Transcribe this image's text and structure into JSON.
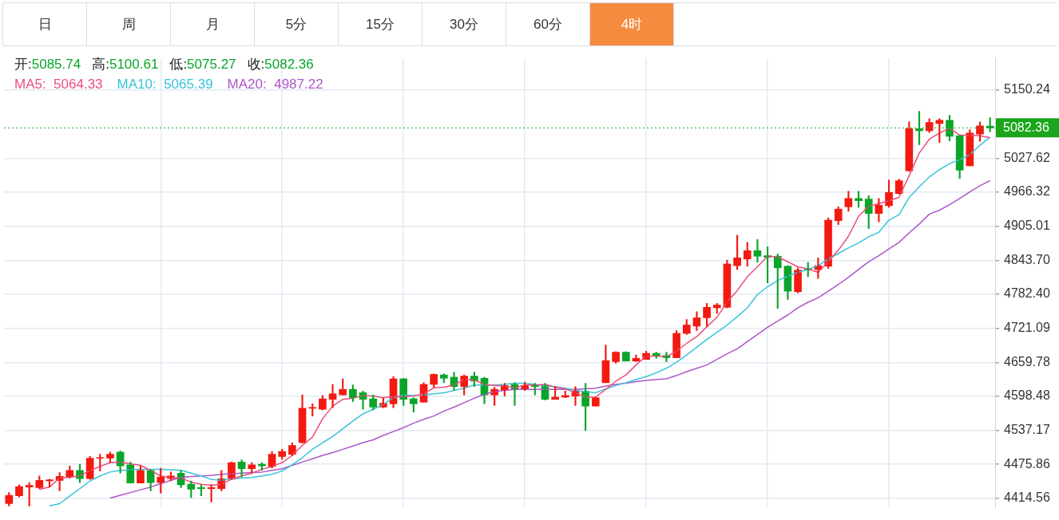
{
  "chart_data": {
    "type": "candlestick",
    "subtitle": "开:5085.74 高:5100.61 低:5075.27 收:5082.36",
    "annotations": [
      "日",
      "周",
      "月",
      "5分",
      "15分",
      "30分",
      "60分",
      "4时"
    ],
    "categories": [
      null,
      null,
      null,
      null,
      null,
      null,
      null,
      null,
      null,
      null,
      null,
      null,
      null,
      null,
      null,
      null,
      null,
      null,
      null,
      null,
      null,
      null,
      null,
      null,
      null,
      null,
      null,
      null,
      null,
      null,
      null,
      null,
      null,
      null,
      null,
      null,
      null,
      null,
      null,
      null,
      null,
      null,
      null,
      null,
      null,
      null,
      null,
      null,
      null,
      null,
      null,
      null,
      null,
      null,
      null,
      null,
      null,
      null,
      null,
      null,
      null,
      null,
      null,
      null,
      null,
      null,
      null,
      null,
      null,
      null,
      null,
      null,
      null,
      null,
      null,
      null,
      null,
      null,
      null,
      null,
      null,
      null,
      null,
      null,
      null,
      null,
      null,
      null,
      null,
      null,
      null,
      null,
      null,
      null,
      null,
      null,
      null,
      null
    ],
    "ohlc": [
      [
        4405,
        4425,
        4401,
        4420
      ],
      [
        4419,
        4439,
        4417,
        4436
      ],
      [
        4435,
        4443,
        4401,
        4438
      ],
      [
        4434,
        4455,
        4432,
        4447
      ],
      [
        4446,
        4449,
        4435,
        4448
      ],
      [
        4447,
        4461,
        4428,
        4454
      ],
      [
        4453,
        4473,
        4451,
        4465
      ],
      [
        4465,
        4476,
        4443,
        4450
      ],
      [
        4450,
        4490,
        4449,
        4487
      ],
      [
        4487,
        4494,
        4464,
        4488
      ],
      [
        4487,
        4498,
        4479,
        4494
      ],
      [
        4498,
        4500,
        4460,
        4473
      ],
      [
        4475,
        4480,
        4442,
        4442
      ],
      [
        4442,
        4473,
        4442,
        4465
      ],
      [
        4465,
        4466,
        4428,
        4443
      ],
      [
        4443,
        4469,
        4424,
        4453
      ],
      [
        4450,
        4462,
        4446,
        4455
      ],
      [
        4460,
        4465,
        4434,
        4439
      ],
      [
        4440,
        4446,
        4416,
        4431
      ],
      [
        4434,
        4439,
        4419,
        4432
      ],
      [
        4432,
        4439,
        4408,
        4434
      ],
      [
        4432,
        4465,
        4428,
        4450
      ],
      [
        4449,
        4480,
        4449,
        4479
      ],
      [
        4480,
        4484,
        4453,
        4468
      ],
      [
        4468,
        4479,
        4460,
        4475
      ],
      [
        4476,
        4479,
        4465,
        4473
      ],
      [
        4472,
        4499,
        4469,
        4494
      ],
      [
        4490,
        4503,
        4485,
        4499
      ],
      [
        4494,
        4515,
        4491,
        4510
      ],
      [
        4515,
        4601,
        4514,
        4577
      ],
      [
        4577,
        4585,
        4563,
        4578
      ],
      [
        4575,
        4600,
        4574,
        4594
      ],
      [
        4593,
        4620,
        4578,
        4603
      ],
      [
        4601,
        4630,
        4601,
        4611
      ],
      [
        4611,
        4619,
        4589,
        4596
      ],
      [
        4605,
        4608,
        4575,
        4593
      ],
      [
        4594,
        4601,
        4574,
        4579
      ],
      [
        4579,
        4596,
        4578,
        4586
      ],
      [
        4585,
        4634,
        4578,
        4630
      ],
      [
        4630,
        4631,
        4582,
        4593
      ],
      [
        4594,
        4596,
        4570,
        4585
      ],
      [
        4588,
        4623,
        4588,
        4620
      ],
      [
        4620,
        4639,
        4615,
        4638
      ],
      [
        4637,
        4639,
        4623,
        4631
      ],
      [
        4633,
        4642,
        4609,
        4616
      ],
      [
        4616,
        4637,
        4601,
        4635
      ],
      [
        4635,
        4642,
        4616,
        4626
      ],
      [
        4631,
        4633,
        4585,
        4601
      ],
      [
        4601,
        4615,
        4582,
        4611
      ],
      [
        4609,
        4622,
        4599,
        4618
      ],
      [
        4620,
        4623,
        4582,
        4611
      ],
      [
        4611,
        4624,
        4609,
        4618
      ],
      [
        4618,
        4622,
        4601,
        4616
      ],
      [
        4619,
        4622,
        4592,
        4593
      ],
      [
        4593,
        4616,
        4593,
        4597
      ],
      [
        4597,
        4608,
        4596,
        4600
      ],
      [
        4599,
        4616,
        4582,
        4608
      ],
      [
        4608,
        4622,
        4537,
        4581
      ],
      [
        4581,
        4597,
        4581,
        4596
      ],
      [
        4623,
        4691,
        4623,
        4663
      ],
      [
        4661,
        4679,
        4658,
        4678
      ],
      [
        4678,
        4679,
        4662,
        4662
      ],
      [
        4662,
        4673,
        4661,
        4667
      ],
      [
        4665,
        4680,
        4665,
        4676
      ],
      [
        4676,
        4678,
        4667,
        4671
      ],
      [
        4672,
        4678,
        4661,
        4668
      ],
      [
        4668,
        4717,
        4668,
        4712
      ],
      [
        4712,
        4737,
        4710,
        4727
      ],
      [
        4725,
        4751,
        4717,
        4740
      ],
      [
        4740,
        4766,
        4724,
        4759
      ],
      [
        4758,
        4766,
        4748,
        4763
      ],
      [
        4759,
        4844,
        4758,
        4837
      ],
      [
        4834,
        4889,
        4827,
        4848
      ],
      [
        4846,
        4876,
        4833,
        4861
      ],
      [
        4861,
        4881,
        4840,
        4851
      ],
      [
        4852,
        4868,
        4803,
        4849
      ],
      [
        4851,
        4855,
        4757,
        4830
      ],
      [
        4833,
        4834,
        4773,
        4788
      ],
      [
        4787,
        4830,
        4785,
        4826
      ],
      [
        4829,
        4840,
        4814,
        4826
      ],
      [
        4827,
        4848,
        4811,
        4834
      ],
      [
        4833,
        4920,
        4829,
        4916
      ],
      [
        4915,
        4940,
        4908,
        4936
      ],
      [
        4940,
        4968,
        4932,
        4955
      ],
      [
        4955,
        4968,
        4939,
        4951
      ],
      [
        4954,
        4960,
        4901,
        4928
      ],
      [
        4928,
        4955,
        4913,
        4943
      ],
      [
        4942,
        4988,
        4939,
        4966
      ],
      [
        4964,
        4990,
        4963,
        4987
      ],
      [
        5005,
        5093,
        5004,
        5081
      ],
      [
        5081,
        5112,
        5052,
        5077
      ],
      [
        5077,
        5099,
        5074,
        5092
      ],
      [
        5090,
        5099,
        5056,
        5096
      ],
      [
        5096,
        5105,
        5059,
        5067
      ],
      [
        5068,
        5069,
        4991,
        5006
      ],
      [
        5014,
        5079,
        5014,
        5073
      ],
      [
        5071,
        5093,
        5058,
        5086
      ],
      [
        5085.74,
        5100.61,
        5075.27,
        5082.36
      ]
    ],
    "colors": [
      "#f31a11",
      "#f31a11",
      "#f31a11",
      "#f31a11",
      "#f31a11",
      "#f31a11",
      "#f31a11",
      "#0aa52a",
      "#f31a11",
      "#f31a11",
      "#f31a11",
      "#0aa52a",
      "#0aa52a",
      "#f31a11",
      "#0aa52a",
      "#f31a11",
      "#f31a11",
      "#0aa52a",
      "#0aa52a",
      "#0aa52a",
      "#f31a11",
      "#f31a11",
      "#f31a11",
      "#0aa52a",
      "#f31a11",
      "#0aa52a",
      "#f31a11",
      "#f31a11",
      "#f31a11",
      "#f31a11",
      "#f31a11",
      "#f31a11",
      "#f31a11",
      "#f31a11",
      "#0aa52a",
      "#0aa52a",
      "#0aa52a",
      "#f31a11",
      "#f31a11",
      "#0aa52a",
      "#0aa52a",
      "#f31a11",
      "#f31a11",
      "#0aa52a",
      "#0aa52a",
      "#f31a11",
      "#0aa52a",
      "#0aa52a",
      "#f31a11",
      "#f31a11",
      "#0aa52a",
      "#f31a11",
      "#0aa52a",
      "#0aa52a",
      "#f31a11",
      "#f31a11",
      "#f31a11",
      "#0aa52a",
      "#f31a11",
      "#f31a11",
      "#f31a11",
      "#0aa52a",
      "#f31a11",
      "#f31a11",
      "#0aa52a",
      "#0aa52a",
      "#f31a11",
      "#f31a11",
      "#f31a11",
      "#f31a11",
      "#f31a11",
      "#f31a11",
      "#f31a11",
      "#f31a11",
      "#0aa52a",
      "#0aa52a",
      "#0aa52a",
      "#0aa52a",
      "#f31a11",
      "#0aa52a",
      "#f31a11",
      "#f31a11",
      "#f31a11",
      "#f31a11",
      "#0aa52a",
      "#0aa52a",
      "#f31a11",
      "#f31a11",
      "#f31a11",
      "#f31a11",
      "#0aa52a",
      "#f31a11",
      "#f31a11",
      "#0aa52a",
      "#0aa52a",
      "#f31a11",
      "#f31a11",
      "#0aa52a"
    ],
    "series": [
      {
        "type": "line",
        "name": "MA5:  5064.33",
        "color": "#ee4d7e",
        "values": [
          null,
          null,
          null,
          4431,
          4435,
          4451,
          4453,
          4455,
          4465,
          4472,
          4479,
          4480,
          4477,
          4474,
          4465,
          4455,
          4452,
          4451,
          4444,
          4440,
          4438,
          4440,
          4449,
          4455,
          4460,
          4467,
          4472,
          4479,
          4492,
          4510,
          4525,
          4558,
          4581,
          4593,
          4595,
          4600,
          4599,
          4596,
          4598,
          4598,
          4599,
          4603,
          4614,
          4615,
          4619,
          4629,
          4628,
          4620,
          4618,
          4617,
          4614,
          4619,
          4619,
          4620,
          4615,
          4612,
          4605,
          4597,
          4597,
          4611,
          4626,
          4637,
          4655,
          4671,
          4671,
          4670,
          4680,
          4694,
          4706,
          4724,
          4741,
          4769,
          4789,
          4814,
          4832,
          4851,
          4850,
          4841,
          4832,
          4828,
          4822,
          4841,
          4862,
          4887,
          4923,
          4941,
          4946,
          4951,
          4957,
          4996,
          5037,
          5062,
          5073,
          5082,
          5069,
          5069,
          5068,
          5064.33
        ]
      },
      {
        "type": "line",
        "name": "MA10:  5065.39",
        "color": "#38c4da",
        "values": [
          null,
          null,
          null,
          null,
          4401,
          4405,
          4419,
          4432,
          4446,
          4455,
          4462,
          4465,
          4466,
          4467,
          4467,
          4467,
          4466,
          4465,
          4460,
          4455,
          4449,
          4447,
          4450,
          4451,
          4452,
          4455,
          4458,
          4464,
          4475,
          4488,
          4503,
          4515,
          4526,
          4540,
          4554,
          4567,
          4575,
          4584,
          4596,
          4601,
          4600,
          4601,
          4603,
          4605,
          4609,
          4613,
          4619,
          4619,
          4619,
          4620,
          4622,
          4622,
          4620,
          4617,
          4616,
          4613,
          4609,
          4607,
          4605,
          4612,
          4618,
          4623,
          4629,
          4634,
          4641,
          4649,
          4660,
          4673,
          4687,
          4701,
          4714,
          4727,
          4742,
          4758,
          4782,
          4796,
          4807,
          4815,
          4822,
          4827,
          4834,
          4846,
          4856,
          4866,
          4875,
          4886,
          4894,
          4916,
          4926,
          4957,
          4976,
          4994,
          5007,
          5018,
          5025,
          5034,
          5051,
          5065.39
        ]
      },
      {
        "type": "line",
        "name": "MA20:  4987.22",
        "color": "#ad55c9",
        "values": [
          null,
          null,
          null,
          null,
          null,
          null,
          null,
          null,
          null,
          null,
          4415,
          4420,
          4425,
          4430,
          4435,
          4441,
          4447,
          4452,
          4454,
          4455,
          4456,
          4458,
          4459,
          4460,
          4461,
          4462,
          4465,
          4468,
          4474,
          4480,
          4486,
          4492,
          4497,
          4503,
          4509,
          4515,
          4520,
          4528,
          4535,
          4542,
          4550,
          4557,
          4563,
          4572,
          4579,
          4587,
          4595,
          4602,
          4607,
          4609,
          4611,
          4611,
          4611,
          4611,
          4611,
          4611,
          4611,
          4612,
          4613,
          4617,
          4620,
          4622,
          4625,
          4627,
          4629,
          4630,
          4636,
          4643,
          4649,
          4655,
          4665,
          4675,
          4684,
          4697,
          4710,
          4723,
          4734,
          4745,
          4758,
          4768,
          4776,
          4788,
          4800,
          4813,
          4827,
          4841,
          4852,
          4864,
          4876,
          4893,
          4909,
          4927,
          4934,
          4944,
          4955,
          4967,
          4978,
          4987.22
        ]
      }
    ],
    "ylim": [
      4398,
      5207
    ],
    "yticks": [
      4414.56,
      4475.86,
      4537.17,
      4598.48,
      4659.78,
      4721.09,
      {
        "value": 4782.4,
        "label": "4782.40"
      },
      {
        "value": 4843.7,
        "label": "4843.70"
      },
      4905.01,
      4966.32,
      5027.62,
      5150.24
    ],
    "ref_lines": [
      {
        "axis": "y",
        "value": 5082.36,
        "label": "5082.36",
        "color": "#1aa61a",
        "line_style": "dotted"
      }
    ],
    "grid": true,
    "legend": "top left",
    "tick_labels": "y"
  }
}
